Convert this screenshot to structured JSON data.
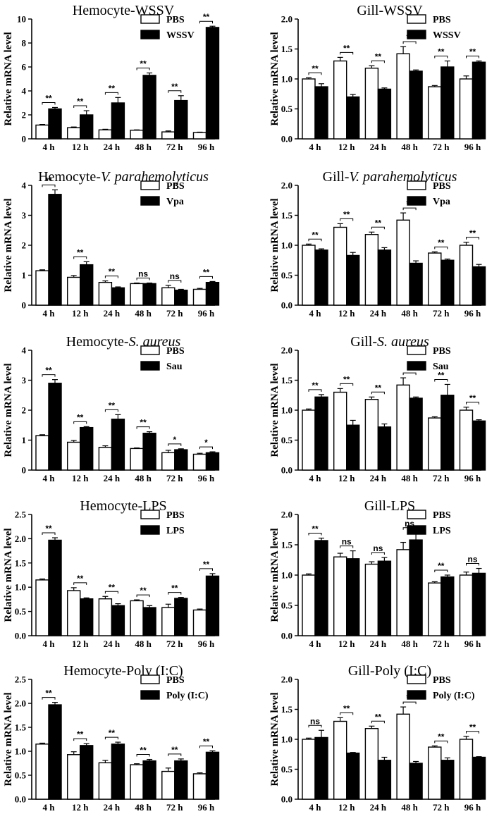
{
  "colors": {
    "pbs_fill": "#ffffff",
    "treat_fill": "#000000",
    "stroke": "#000000"
  },
  "chart_data": [
    {
      "type": "bar",
      "title": "Hemocyte-WSSV",
      "title_parts": [
        "Hemocyte-WSSV"
      ],
      "ylabel": "Relative mRNA level",
      "xlabel": "",
      "categories": [
        "4 h",
        "12 h",
        "24 h",
        "48 h",
        "72 h",
        "96 h"
      ],
      "ylim": [
        0,
        10
      ],
      "yticks": [
        "0",
        "2",
        "4",
        "6",
        "8",
        "10"
      ],
      "series": [
        {
          "name": "PBS",
          "values": [
            1.15,
            0.93,
            0.75,
            0.72,
            0.58,
            0.53
          ],
          "errors": [
            0.05,
            0.06,
            0.05,
            0.03,
            0.08,
            0.03
          ]
        },
        {
          "name": "WSSV",
          "values": [
            2.5,
            2.0,
            3.0,
            5.3,
            3.2,
            9.3
          ],
          "errors": [
            0.12,
            0.35,
            0.45,
            0.2,
            0.4,
            0.1
          ]
        }
      ],
      "significance": [
        "**",
        "**",
        "**",
        "**",
        "**",
        "**"
      ]
    },
    {
      "type": "bar",
      "title": "Gill-WSSV",
      "title_parts": [
        "Gill-WSSV"
      ],
      "ylabel": "Relative mRNA level",
      "xlabel": "",
      "categories": [
        "4 h",
        "12 h",
        "24 h",
        "48 h",
        "72 h",
        "96 h"
      ],
      "ylim": [
        0,
        2.0
      ],
      "yticks": [
        "0.0",
        "0.5",
        "1.0",
        "1.5",
        "2.0"
      ],
      "series": [
        {
          "name": "PBS",
          "values": [
            1.0,
            1.3,
            1.18,
            1.42,
            0.87,
            1.0
          ],
          "errors": [
            0.02,
            0.06,
            0.04,
            0.12,
            0.02,
            0.05
          ]
        },
        {
          "name": "WSSV",
          "values": [
            0.87,
            0.7,
            0.83,
            1.13,
            1.2,
            1.28
          ],
          "errors": [
            0.05,
            0.04,
            0.02,
            0.02,
            0.1,
            0.02
          ]
        }
      ],
      "significance": [
        "**",
        "**",
        "**",
        "**",
        "**",
        "**"
      ]
    },
    {
      "type": "bar",
      "title": "Hemocyte-V. parahemolyticus",
      "title_parts": [
        "Hemocyte-",
        "V. parahemolyticus"
      ],
      "ylabel": "Relative mRNA level",
      "xlabel": "",
      "categories": [
        "4 h",
        "12 h",
        "24 h",
        "48 h",
        "72 h",
        "96 h"
      ],
      "ylim": [
        0,
        4
      ],
      "yticks": [
        "0",
        "1",
        "2",
        "3",
        "4"
      ],
      "series": [
        {
          "name": "PBS",
          "values": [
            1.15,
            0.93,
            0.76,
            0.72,
            0.58,
            0.53
          ],
          "errors": [
            0.03,
            0.06,
            0.05,
            0.02,
            0.08,
            0.03
          ]
        },
        {
          "name": "Vpa",
          "values": [
            3.7,
            1.35,
            0.58,
            0.72,
            0.5,
            0.76
          ],
          "errors": [
            0.15,
            0.1,
            0.03,
            0.02,
            0.03,
            0.03
          ]
        }
      ],
      "significance": [
        "**",
        "**",
        "**",
        "ns",
        "ns",
        "**"
      ]
    },
    {
      "type": "bar",
      "title": "Gill-V. parahemolyticus",
      "title_parts": [
        "Gill-",
        "V. parahemolyticus"
      ],
      "ylabel": "Relative mRNA level",
      "xlabel": "",
      "categories": [
        "4 h",
        "12 h",
        "24 h",
        "48 h",
        "72 h",
        "96 h"
      ],
      "ylim": [
        0,
        2.0
      ],
      "yticks": [
        "0.0",
        "0.5",
        "1.0",
        "1.5",
        "2.0"
      ],
      "series": [
        {
          "name": "PBS",
          "values": [
            1.0,
            1.3,
            1.18,
            1.42,
            0.87,
            1.0
          ],
          "errors": [
            0.02,
            0.06,
            0.04,
            0.12,
            0.02,
            0.05
          ]
        },
        {
          "name": "Vpa",
          "values": [
            0.92,
            0.83,
            0.92,
            0.7,
            0.75,
            0.64
          ],
          "errors": [
            0.02,
            0.05,
            0.04,
            0.04,
            0.02,
            0.04
          ]
        }
      ],
      "significance": [
        "**",
        "**",
        "**",
        "**",
        "**",
        "**"
      ]
    },
    {
      "type": "bar",
      "title": "Hemocyte-S. aureus",
      "title_parts": [
        "Hemocyte-",
        "S. aureus"
      ],
      "ylabel": "Relative mRNA level",
      "xlabel": "",
      "categories": [
        "4 h",
        "12 h",
        "24 h",
        "48 h",
        "72 h",
        "96 h"
      ],
      "ylim": [
        0,
        4
      ],
      "yticks": [
        "0",
        "1",
        "2",
        "3",
        "4"
      ],
      "series": [
        {
          "name": "PBS",
          "values": [
            1.15,
            0.93,
            0.76,
            0.72,
            0.58,
            0.53
          ],
          "errors": [
            0.03,
            0.06,
            0.05,
            0.02,
            0.08,
            0.03
          ]
        },
        {
          "name": "Sau",
          "values": [
            2.9,
            1.42,
            1.7,
            1.23,
            0.68,
            0.58
          ],
          "errors": [
            0.12,
            0.03,
            0.15,
            0.05,
            0.03,
            0.03
          ]
        }
      ],
      "significance": [
        "**",
        "**",
        "**",
        "**",
        "*",
        "*"
      ]
    },
    {
      "type": "bar",
      "title": "Gill-S. aureus",
      "title_parts": [
        "Gill-",
        "S. aureus"
      ],
      "ylabel": "Relative mRNA level",
      "xlabel": "",
      "categories": [
        "4 h",
        "12 h",
        "24 h",
        "48 h",
        "72 h",
        "96 h"
      ],
      "ylim": [
        0,
        2.0
      ],
      "yticks": [
        "0.0",
        "0.5",
        "1.0",
        "1.5",
        "2.0"
      ],
      "series": [
        {
          "name": "PBS",
          "values": [
            1.0,
            1.3,
            1.18,
            1.42,
            0.87,
            1.0
          ],
          "errors": [
            0.02,
            0.06,
            0.04,
            0.12,
            0.02,
            0.05
          ]
        },
        {
          "name": "Sau",
          "values": [
            1.22,
            0.75,
            0.72,
            1.2,
            1.25,
            0.82
          ],
          "errors": [
            0.04,
            0.08,
            0.05,
            0.02,
            0.18,
            0.02
          ]
        }
      ],
      "significance": [
        "**",
        "**",
        "**",
        "*",
        "**",
        "**"
      ]
    },
    {
      "type": "bar",
      "title": "Hemocyte-LPS",
      "title_parts": [
        "Hemocyte-LPS"
      ],
      "ylabel": "Relative mRNA level",
      "xlabel": "",
      "categories": [
        "4 h",
        "12 h",
        "24 h",
        "48 h",
        "72 h",
        "96 h"
      ],
      "ylim": [
        0,
        2.5
      ],
      "yticks": [
        "0.0",
        "0.5",
        "1.0",
        "1.5",
        "2.0",
        "2.5"
      ],
      "series": [
        {
          "name": "PBS",
          "values": [
            1.15,
            0.93,
            0.76,
            0.72,
            0.58,
            0.53
          ],
          "errors": [
            0.02,
            0.06,
            0.05,
            0.02,
            0.07,
            0.02
          ]
        },
        {
          "name": "LPS",
          "values": [
            1.97,
            0.76,
            0.62,
            0.58,
            0.77,
            1.23
          ],
          "errors": [
            0.05,
            0.02,
            0.04,
            0.04,
            0.02,
            0.05
          ]
        }
      ],
      "significance": [
        "**",
        "**",
        "**",
        "**",
        "**",
        "**"
      ]
    },
    {
      "type": "bar",
      "title": "Gill-LPS",
      "title_parts": [
        "Gill-LPS"
      ],
      "ylabel": "Relative mRNA level",
      "xlabel": "",
      "categories": [
        "4 h",
        "12 h",
        "24 h",
        "48 h",
        "72 h",
        "96 h"
      ],
      "ylim": [
        0,
        2.0
      ],
      "yticks": [
        "0.0",
        "0.5",
        "1.0",
        "1.5",
        "2.0"
      ],
      "series": [
        {
          "name": "PBS",
          "values": [
            1.0,
            1.3,
            1.18,
            1.42,
            0.87,
            1.0
          ],
          "errors": [
            0.02,
            0.06,
            0.04,
            0.12,
            0.02,
            0.05
          ]
        },
        {
          "name": "LPS",
          "values": [
            1.57,
            1.27,
            1.23,
            1.58,
            0.97,
            1.03
          ],
          "errors": [
            0.04,
            0.13,
            0.06,
            0.12,
            0.03,
            0.08
          ]
        }
      ],
      "significance": [
        "**",
        "ns",
        "ns",
        "ns",
        "**",
        "ns"
      ]
    },
    {
      "type": "bar",
      "title": "Hemocyte-Poly (I:C)",
      "title_parts": [
        "Hemocyte-Poly (I:C)"
      ],
      "ylabel": "Relative mRNA level",
      "xlabel": "",
      "categories": [
        "4 h",
        "12 h",
        "24 h",
        "48 h",
        "72 h",
        "96 h"
      ],
      "ylim": [
        0,
        2.5
      ],
      "yticks": [
        "0.0",
        "0.5",
        "1.0",
        "1.5",
        "2.0",
        "2.5"
      ],
      "series": [
        {
          "name": "PBS",
          "values": [
            1.15,
            0.93,
            0.76,
            0.72,
            0.58,
            0.53
          ],
          "errors": [
            0.02,
            0.06,
            0.05,
            0.02,
            0.07,
            0.02
          ]
        },
        {
          "name": "Poly (I:C)",
          "values": [
            1.97,
            1.12,
            1.15,
            0.8,
            0.8,
            0.98
          ],
          "errors": [
            0.05,
            0.04,
            0.04,
            0.03,
            0.04,
            0.03
          ]
        }
      ],
      "significance": [
        "**",
        "**",
        "**",
        "**",
        "**",
        "**"
      ]
    },
    {
      "type": "bar",
      "title": "Gill-Poly (I:C)",
      "title_parts": [
        "Gill-Poly (I:C)"
      ],
      "ylabel": "Relative mRNA level",
      "xlabel": "",
      "categories": [
        "4 h",
        "12 h",
        "24 h",
        "48 h",
        "72 h",
        "96 h"
      ],
      "ylim": [
        0,
        2.0
      ],
      "yticks": [
        "0.0",
        "0.5",
        "1.0",
        "1.5",
        "2.0"
      ],
      "series": [
        {
          "name": "PBS",
          "values": [
            1.0,
            1.3,
            1.18,
            1.42,
            0.87,
            1.0
          ],
          "errors": [
            0.02,
            0.06,
            0.04,
            0.12,
            0.02,
            0.05
          ]
        },
        {
          "name": "Poly (I:C)",
          "values": [
            1.03,
            0.77,
            0.65,
            0.6,
            0.65,
            0.7
          ],
          "errors": [
            0.12,
            0.01,
            0.05,
            0.03,
            0.04,
            0.01
          ]
        }
      ],
      "significance": [
        "ns",
        "**",
        "**",
        "**",
        "**",
        "**"
      ]
    }
  ]
}
